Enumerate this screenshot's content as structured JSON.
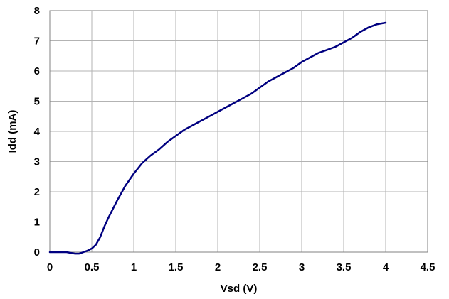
{
  "chart_data": {
    "type": "line",
    "title": "",
    "xlabel": "Vsd (V)",
    "ylabel": "Idd (mA)",
    "xlim": [
      0,
      4.5
    ],
    "ylim": [
      0,
      8
    ],
    "x_ticks": [
      "0",
      "0.5",
      "1",
      "1.5",
      "2",
      "2.5",
      "3",
      "3.5",
      "4",
      "4.5"
    ],
    "y_ticks": [
      "0",
      "1",
      "2",
      "3",
      "4",
      "5",
      "6",
      "7",
      "8"
    ],
    "grid": true,
    "legend": "none",
    "series_color": "#000080",
    "series": [
      {
        "x": [
          0,
          0.1,
          0.2,
          0.3,
          0.35,
          0.4,
          0.45,
          0.5,
          0.55,
          0.6,
          0.65,
          0.7,
          0.8,
          0.9,
          1.0,
          1.1,
          1.2,
          1.3,
          1.4,
          1.5,
          1.6,
          1.7,
          1.8,
          1.9,
          2.0,
          2.1,
          2.2,
          2.3,
          2.4,
          2.5,
          2.6,
          2.7,
          2.8,
          2.9,
          3.0,
          3.1,
          3.2,
          3.3,
          3.4,
          3.5,
          3.6,
          3.7,
          3.8,
          3.9,
          4.0
        ],
        "y": [
          0,
          0,
          0,
          -0.05,
          -0.05,
          0,
          0.05,
          0.12,
          0.25,
          0.5,
          0.85,
          1.15,
          1.7,
          2.2,
          2.6,
          2.95,
          3.2,
          3.4,
          3.65,
          3.85,
          4.05,
          4.2,
          4.35,
          4.5,
          4.65,
          4.8,
          4.95,
          5.1,
          5.25,
          5.45,
          5.65,
          5.8,
          5.95,
          6.1,
          6.3,
          6.45,
          6.6,
          6.7,
          6.8,
          6.95,
          7.1,
          7.3,
          7.45,
          7.55,
          7.6
        ]
      }
    ]
  }
}
